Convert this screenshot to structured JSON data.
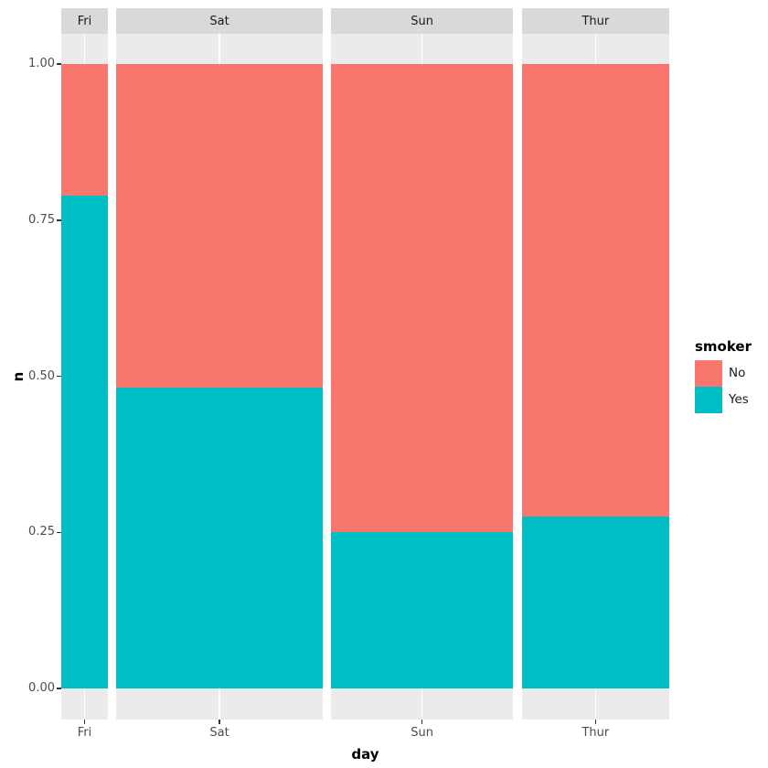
{
  "chart_data": {
    "type": "bar",
    "subtype": "faceted_stacked_fill_proportional_width",
    "title": "",
    "xlabel": "day",
    "ylabel": "n",
    "grid": true,
    "panel_background": "#EBEBEB",
    "strip_background": "#D9D9D9",
    "gridline_color": "#FFFFFF",
    "legend": {
      "title": "smoker",
      "position": "right",
      "entries": [
        {
          "label": "No",
          "color": "#F8766D"
        },
        {
          "label": "Yes",
          "color": "#00BFC4"
        }
      ]
    },
    "y_axis": {
      "range": [
        0,
        1
      ],
      "ticks": [
        {
          "label": "1.00",
          "value": 1.0
        },
        {
          "label": "0.75",
          "value": 0.75
        },
        {
          "label": "0.50",
          "value": 0.5
        },
        {
          "label": "0.25",
          "value": 0.25
        },
        {
          "label": "0.00",
          "value": 0.0
        }
      ]
    },
    "facets": [
      {
        "label": "Fri",
        "tick_label": "Fri",
        "width_weight": 0.0801,
        "stack": {
          "No": 0.211,
          "Yes": 0.789
        }
      },
      {
        "label": "Sat",
        "tick_label": "Sat",
        "width_weight": 0.3537,
        "stack": {
          "No": 0.518,
          "Yes": 0.482
        }
      },
      {
        "label": "Sun",
        "tick_label": "Sun",
        "width_weight": 0.3128,
        "stack": {
          "No": 0.75,
          "Yes": 0.25
        }
      },
      {
        "label": "Thur",
        "tick_label": "Thur",
        "width_weight": 0.2534,
        "stack": {
          "No": 0.725,
          "Yes": 0.275
        }
      }
    ]
  }
}
